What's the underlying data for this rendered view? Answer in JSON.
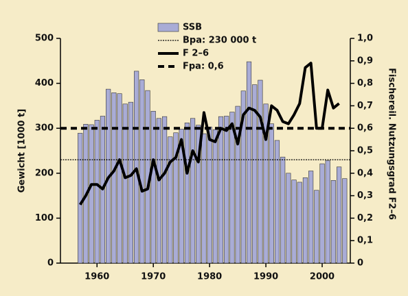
{
  "chart_data": {
    "type": "bar_line",
    "x": [
      1957,
      1958,
      1959,
      1960,
      1961,
      1962,
      1963,
      1964,
      1965,
      1966,
      1967,
      1968,
      1969,
      1970,
      1971,
      1972,
      1973,
      1974,
      1975,
      1976,
      1977,
      1978,
      1979,
      1980,
      1981,
      1982,
      1983,
      1984,
      1985,
      1986,
      1987,
      1988,
      1989,
      1990,
      1991,
      1992,
      1993,
      1994,
      1995,
      1996,
      1997,
      1998,
      1999,
      2000,
      2001,
      2002,
      2003,
      2004
    ],
    "series": [
      {
        "name": "SSB",
        "type": "bar",
        "color": "#a9acd6",
        "axis": "y",
        "values": [
          289,
          309,
          308,
          318,
          327,
          387,
          379,
          377,
          354,
          358,
          427,
          408,
          384,
          338,
          322,
          326,
          281,
          290,
          298,
          312,
          322,
          307,
          288,
          303,
          297,
          326,
          327,
          336,
          349,
          383,
          448,
          397,
          407,
          354,
          310,
          273,
          236,
          200,
          185,
          180,
          190,
          205,
          162,
          221,
          228,
          184,
          214,
          188
        ]
      },
      {
        "name": "F 2–6",
        "type": "line",
        "color": "#000000",
        "axis": "y2",
        "values": [
          0.26,
          0.3,
          0.35,
          0.35,
          0.33,
          0.38,
          0.41,
          0.46,
          0.38,
          0.39,
          0.42,
          0.32,
          0.33,
          0.46,
          0.37,
          0.4,
          0.45,
          0.47,
          0.55,
          0.4,
          0.5,
          0.45,
          0.67,
          0.55,
          0.54,
          0.6,
          0.59,
          0.62,
          0.53,
          0.66,
          0.69,
          0.68,
          0.65,
          0.55,
          0.7,
          0.68,
          0.63,
          0.62,
          0.66,
          0.71,
          0.87,
          0.89,
          0.6,
          0.6,
          0.77,
          0.69,
          0.71,
          null
        ]
      }
    ],
    "reference_lines": [
      {
        "name": "Bpa: 230 000 t",
        "value": 230,
        "axis": "y",
        "style": "dotted"
      },
      {
        "name": "Fpa: 0,6",
        "value": 0.6,
        "axis": "y2",
        "style": "dashed"
      }
    ],
    "y_label": "Gewicht [1000 t]",
    "y2_label": "Fischereil. Nutzungsgrad F2–6",
    "xlim": [
      1953.5,
      2005
    ],
    "xticks": [
      1960,
      1970,
      1980,
      1990,
      2000
    ],
    "ylim": [
      0,
      500
    ],
    "yticks": [
      0,
      100,
      200,
      300,
      400,
      500
    ],
    "y2lim": [
      0,
      1
    ],
    "y2ticks": [
      {
        "value": 0,
        "label": "0"
      },
      {
        "value": 0.1,
        "label": "0,1"
      },
      {
        "value": 0.2,
        "label": "0,2"
      },
      {
        "value": 0.3,
        "label": "0,3"
      },
      {
        "value": 0.4,
        "label": "0,4"
      },
      {
        "value": 0.5,
        "label": "0,5"
      },
      {
        "value": 0.6,
        "label": "0,6"
      },
      {
        "value": 0.7,
        "label": "0,7"
      },
      {
        "value": 0.8,
        "label": "0,8"
      },
      {
        "value": 0.9,
        "label": "0,9"
      },
      {
        "value": 1,
        "label": "1,0"
      }
    ]
  }
}
